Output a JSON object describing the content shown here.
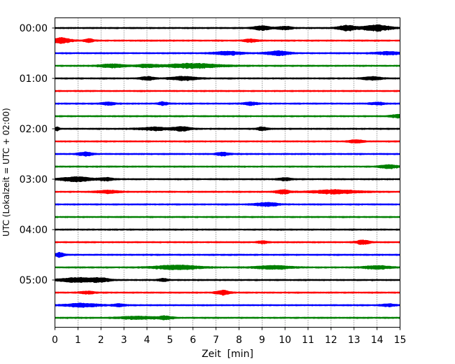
{
  "chart_data": {
    "type": "line",
    "title": "",
    "xlabel": "Zeit  [min]",
    "ylabel": "UTC (Lokalzeit = UTC + 02:00)",
    "xlim": [
      0,
      15
    ],
    "x_ticks": [
      "0",
      "1",
      "2",
      "3",
      "4",
      "5",
      "6",
      "7",
      "8",
      "9",
      "10",
      "11",
      "12",
      "13",
      "14",
      "15"
    ],
    "y_tick_labels": [
      "00:00",
      "01:00",
      "02:00",
      "03:00",
      "04:00",
      "05:00"
    ],
    "y_tick_trace_index": [
      0,
      4,
      8,
      12,
      16,
      20
    ],
    "grid": "vertical dotted at each minute",
    "legend": "none",
    "trace_interval_minutes": 15,
    "color_cycle": [
      "#000000",
      "#ff0000",
      "#0000ff",
      "#008000"
    ],
    "traces": [
      {
        "start": "00:00",
        "color": "#000000",
        "bursts": [
          [
            9,
            0.4,
            2.2
          ],
          [
            10,
            0.3,
            2
          ],
          [
            12.7,
            0.4,
            3
          ],
          [
            14,
            0.6,
            3.5
          ]
        ]
      },
      {
        "start": "00:15",
        "color": "#ff0000",
        "bursts": [
          [
            0.3,
            0.4,
            3.5
          ],
          [
            1.5,
            0.2,
            2
          ],
          [
            8.5,
            0.3,
            1.5
          ]
        ]
      },
      {
        "start": "00:30",
        "color": "#0000ff",
        "bursts": [
          [
            7.5,
            0.6,
            2
          ],
          [
            9.7,
            0.5,
            2.5
          ],
          [
            14.5,
            0.6,
            1.6
          ]
        ]
      },
      {
        "start": "00:45",
        "color": "#008000",
        "bursts": [
          [
            2.5,
            0.6,
            2
          ],
          [
            4,
            0.4,
            1.8
          ],
          [
            6,
            1.2,
            2.6
          ]
        ]
      },
      {
        "start": "01:00",
        "color": "#000000",
        "bursts": [
          [
            4,
            0.3,
            2
          ],
          [
            5.6,
            0.6,
            2.2
          ],
          [
            13.8,
            0.4,
            1.8
          ]
        ]
      },
      {
        "start": "01:15",
        "color": "#ff0000",
        "bursts": []
      },
      {
        "start": "01:30",
        "color": "#0000ff",
        "bursts": [
          [
            2.3,
            0.3,
            1.6
          ],
          [
            4.7,
            0.2,
            2
          ],
          [
            8.5,
            0.3,
            1.6
          ],
          [
            14,
            0.3,
            1.4
          ]
        ]
      },
      {
        "start": "01:45",
        "color": "#008000",
        "bursts": [
          [
            14.9,
            0.3,
            2
          ]
        ]
      },
      {
        "start": "02:00",
        "color": "#000000",
        "bursts": [
          [
            0.1,
            0.1,
            2.2
          ],
          [
            4.3,
            0.6,
            1.8
          ],
          [
            5.5,
            0.4,
            2.5
          ],
          [
            9,
            0.2,
            2
          ]
        ]
      },
      {
        "start": "02:15",
        "color": "#ff0000",
        "bursts": [
          [
            13.1,
            0.3,
            1.8
          ]
        ]
      },
      {
        "start": "02:30",
        "color": "#0000ff",
        "bursts": [
          [
            1.3,
            0.3,
            2.2
          ],
          [
            7.3,
            0.3,
            1.8
          ]
        ]
      },
      {
        "start": "02:45",
        "color": "#008000",
        "bursts": [
          [
            14.5,
            0.4,
            2
          ]
        ]
      },
      {
        "start": "03:00",
        "color": "#000000",
        "bursts": [
          [
            0.9,
            0.7,
            2.6
          ],
          [
            2.2,
            0.3,
            1.8
          ],
          [
            10,
            0.3,
            1.4
          ]
        ]
      },
      {
        "start": "03:15",
        "color": "#ff0000",
        "bursts": [
          [
            2.3,
            0.5,
            1.6
          ],
          [
            9.9,
            0.3,
            2.2
          ],
          [
            12.2,
            1,
            2.2
          ]
        ]
      },
      {
        "start": "03:30",
        "color": "#0000ff",
        "bursts": [
          [
            9.2,
            0.5,
            2
          ]
        ]
      },
      {
        "start": "03:45",
        "color": "#008000",
        "bursts": []
      },
      {
        "start": "04:00",
        "color": "#000000",
        "bursts": []
      },
      {
        "start": "04:15",
        "color": "#ff0000",
        "bursts": [
          [
            9,
            0.2,
            1.6
          ],
          [
            13.4,
            0.3,
            2.4
          ]
        ]
      },
      {
        "start": "04:30",
        "color": "#0000ff",
        "bursts": [
          [
            0.2,
            0.2,
            2.4
          ]
        ]
      },
      {
        "start": "04:45",
        "color": "#008000",
        "bursts": [
          [
            5.3,
            1,
            2.6
          ],
          [
            9.5,
            0.8,
            2
          ],
          [
            14,
            0.6,
            1.8
          ]
        ]
      },
      {
        "start": "05:00",
        "color": "#000000",
        "bursts": [
          [
            1,
            0.8,
            2.6
          ],
          [
            2,
            0.4,
            2
          ],
          [
            4.7,
            0.2,
            1.6
          ]
        ]
      },
      {
        "start": "05:15",
        "color": "#ff0000",
        "bursts": [
          [
            1.4,
            0.3,
            1.5
          ],
          [
            7.3,
            0.3,
            2.6
          ]
        ]
      },
      {
        "start": "05:30",
        "color": "#0000ff",
        "bursts": [
          [
            1.2,
            0.7,
            2
          ],
          [
            2.8,
            0.3,
            1.4
          ],
          [
            14.5,
            0.3,
            1.3
          ]
        ]
      },
      {
        "start": "05:45",
        "color": "#008000",
        "bursts": [
          [
            3.6,
            0.8,
            1.6
          ],
          [
            4.8,
            0.3,
            2
          ]
        ]
      }
    ]
  }
}
